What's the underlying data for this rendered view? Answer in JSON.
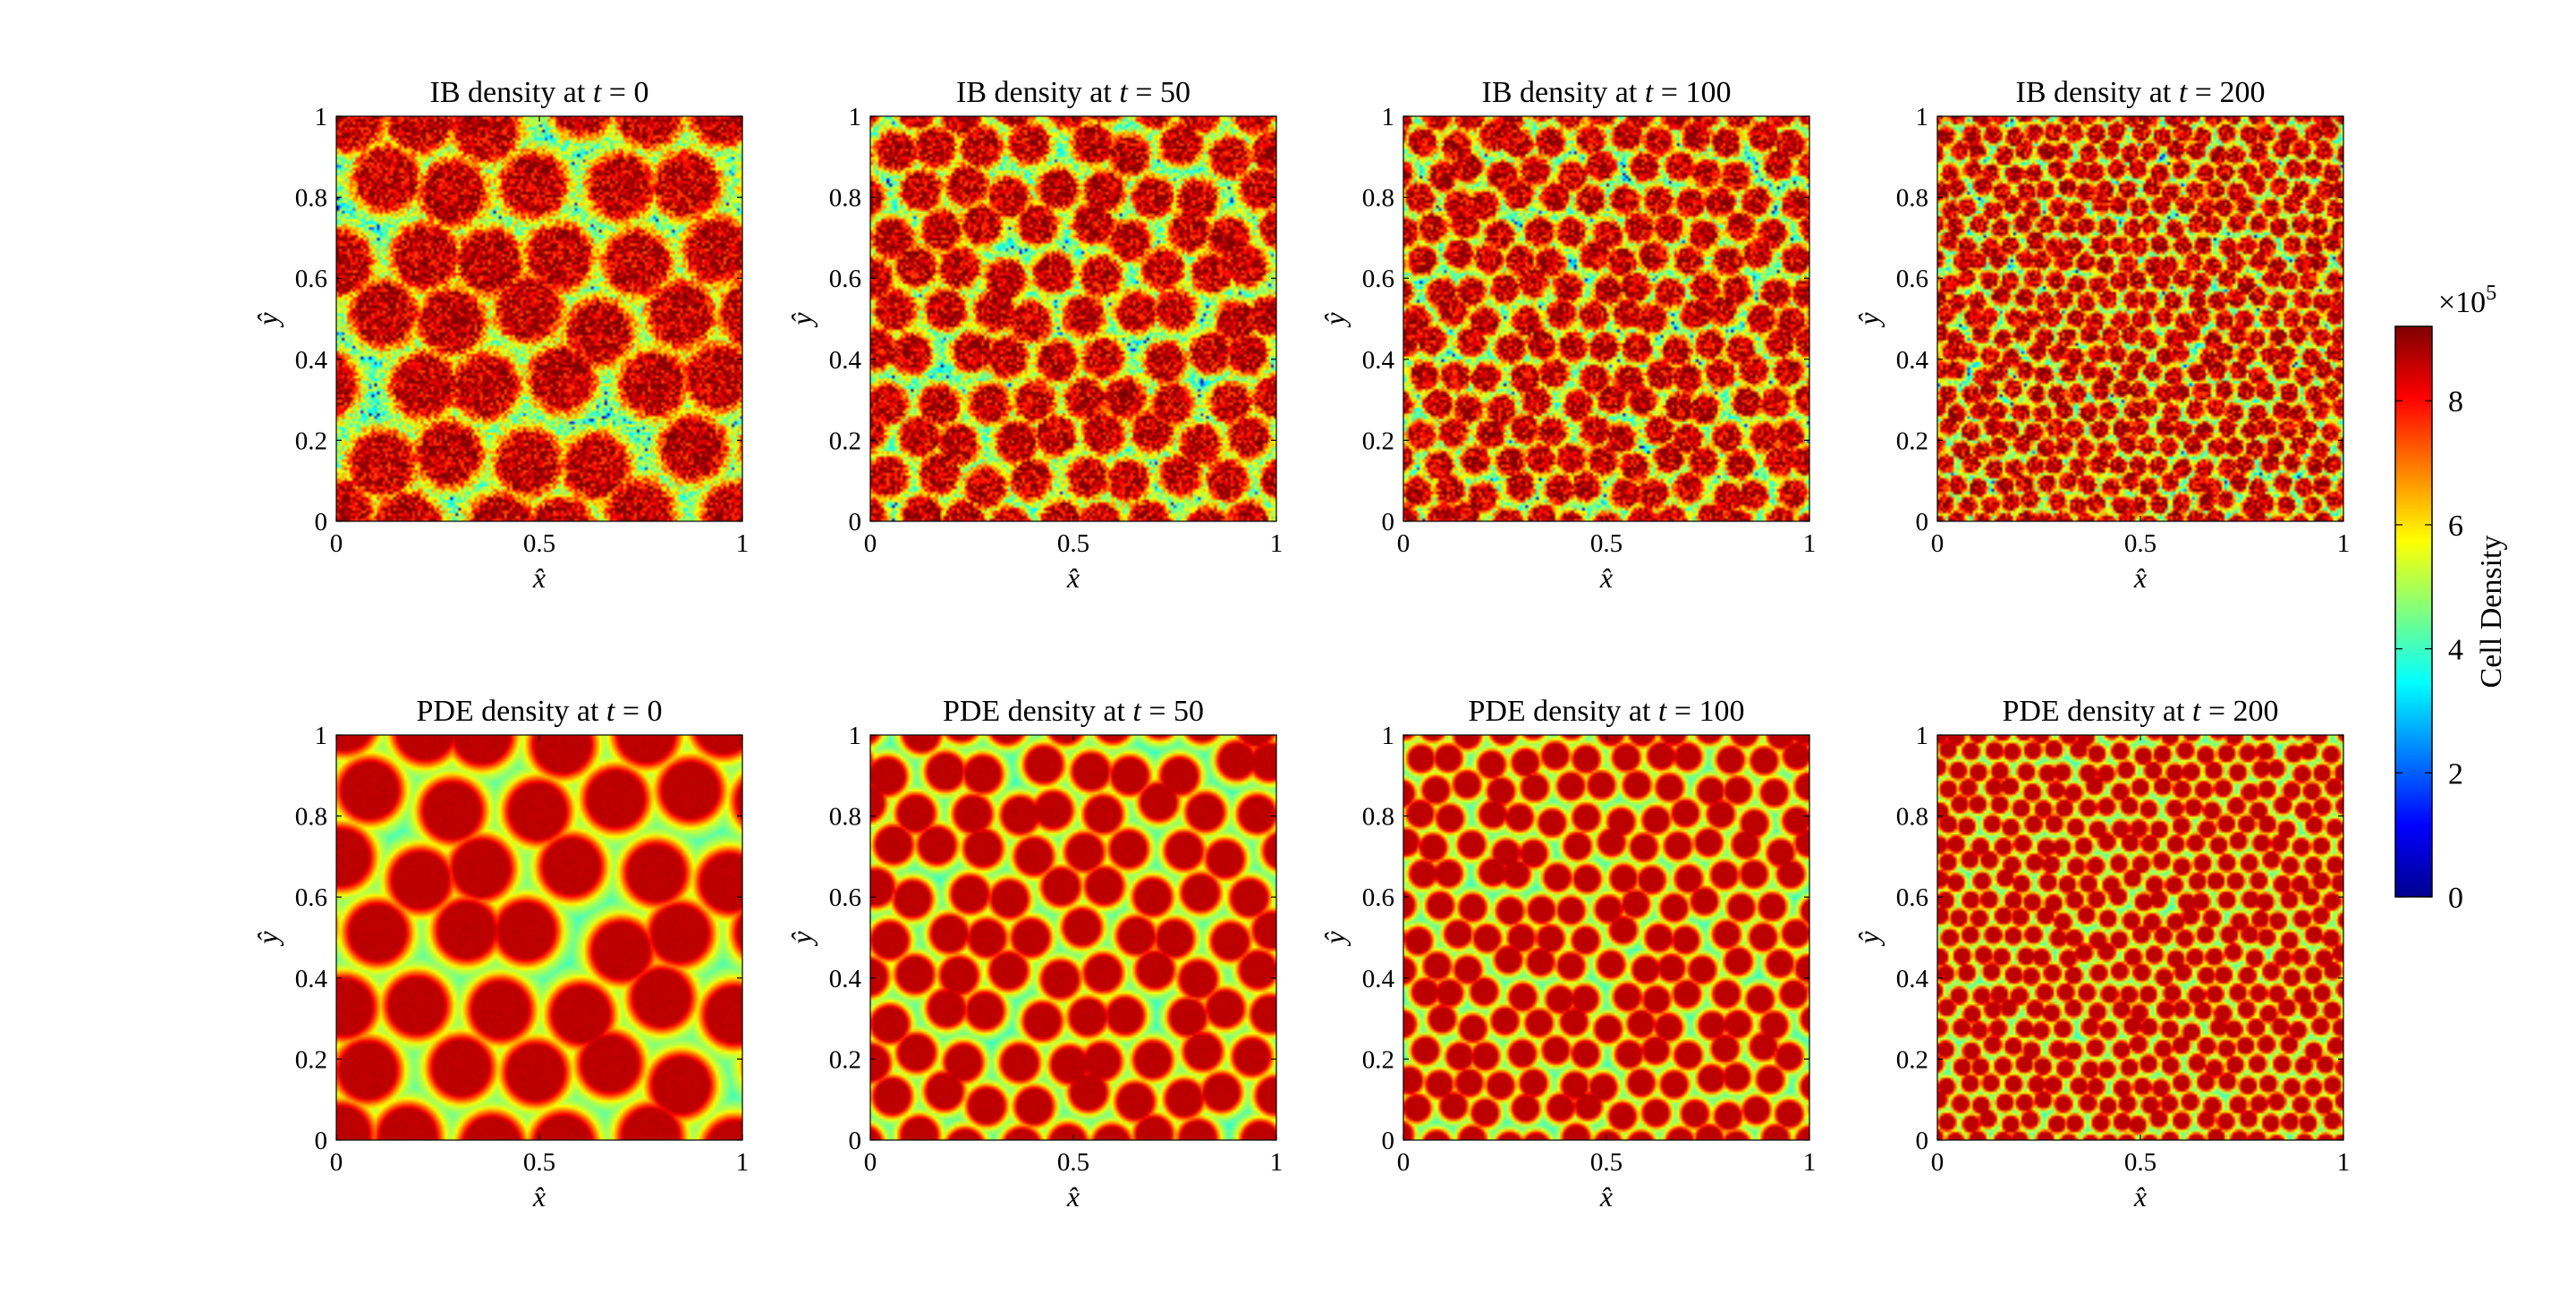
{
  "figure": {
    "colormap": "jet",
    "colorbar": {
      "label": "Cell Density",
      "exponent_label": "×10",
      "exponent": "5",
      "ticks": [
        0,
        2,
        4,
        6,
        8
      ],
      "clim": [
        0,
        9.2
      ]
    }
  },
  "chart_data": [
    {
      "type": "heatmap",
      "title": "IB density at ",
      "time_var": "t",
      "time_value": "= 0",
      "xlabel": "x̂",
      "ylabel": "ŷ",
      "xlim": [
        0,
        1
      ],
      "ylim": [
        0,
        1
      ],
      "xticks": [
        "0",
        "0.5",
        "1"
      ],
      "yticks": [
        "0",
        "0.2",
        "0.4",
        "0.6",
        "0.8",
        "1"
      ],
      "source": "IB",
      "t": 0,
      "spots_per_side": 5.2,
      "noisy": true
    },
    {
      "type": "heatmap",
      "title": "IB density at ",
      "time_var": "t",
      "time_value": "= 50",
      "xlabel": "x̂",
      "ylabel": "ŷ",
      "xlim": [
        0,
        1
      ],
      "ylim": [
        0,
        1
      ],
      "xticks": [
        "0",
        "0.5",
        "1"
      ],
      "yticks": [
        "0",
        "0.2",
        "0.4",
        "0.6",
        "0.8",
        "1"
      ],
      "source": "IB",
      "t": 50,
      "spots_per_side": 8.5,
      "noisy": true
    },
    {
      "type": "heatmap",
      "title": "IB density at ",
      "time_var": "t",
      "time_value": "= 100",
      "xlabel": "x̂",
      "ylabel": "ŷ",
      "xlim": [
        0,
        1
      ],
      "ylim": [
        0,
        1
      ],
      "xticks": [
        "0",
        "0.5",
        "1"
      ],
      "yticks": [
        "0",
        "0.2",
        "0.4",
        "0.6",
        "0.8",
        "1"
      ],
      "source": "IB",
      "t": 100,
      "spots_per_side": 12,
      "noisy": true
    },
    {
      "type": "heatmap",
      "title": "IB density at ",
      "time_var": "t",
      "time_value": "= 200",
      "xlabel": "x̂",
      "ylabel": "ŷ",
      "xlim": [
        0,
        1
      ],
      "ylim": [
        0,
        1
      ],
      "xticks": [
        "0",
        "0.5",
        "1"
      ],
      "yticks": [
        "0",
        "0.2",
        "0.4",
        "0.6",
        "0.8",
        "1"
      ],
      "source": "IB",
      "t": 200,
      "spots_per_side": 19,
      "noisy": true
    },
    {
      "type": "heatmap",
      "title": "PDE density at ",
      "time_var": "t",
      "time_value": "= 0",
      "xlabel": "x̂",
      "ylabel": "ŷ",
      "xlim": [
        0,
        1
      ],
      "ylim": [
        0,
        1
      ],
      "xticks": [
        "0",
        "0.5",
        "1"
      ],
      "yticks": [
        "0",
        "0.2",
        "0.4",
        "0.6",
        "0.8",
        "1"
      ],
      "source": "PDE",
      "t": 0,
      "spots_per_side": 5.2,
      "noisy": false
    },
    {
      "type": "heatmap",
      "title": "PDE density at ",
      "time_var": "t",
      "time_value": "= 50",
      "xlabel": "x̂",
      "ylabel": "ŷ",
      "xlim": [
        0,
        1
      ],
      "ylim": [
        0,
        1
      ],
      "xticks": [
        "0",
        "0.5",
        "1"
      ],
      "yticks": [
        "0",
        "0.2",
        "0.4",
        "0.6",
        "0.8",
        "1"
      ],
      "source": "PDE",
      "t": 50,
      "spots_per_side": 8.5,
      "noisy": false
    },
    {
      "type": "heatmap",
      "title": "PDE density at ",
      "time_var": "t",
      "time_value": "= 100",
      "xlabel": "x̂",
      "ylabel": "ŷ",
      "xlim": [
        0,
        1
      ],
      "ylim": [
        0,
        1
      ],
      "xticks": [
        "0",
        "0.5",
        "1"
      ],
      "yticks": [
        "0",
        "0.2",
        "0.4",
        "0.6",
        "0.8",
        "1"
      ],
      "source": "PDE",
      "t": 100,
      "spots_per_side": 12,
      "noisy": false
    },
    {
      "type": "heatmap",
      "title": "PDE density at ",
      "time_var": "t",
      "time_value": "= 200",
      "xlabel": "x̂",
      "ylabel": "ŷ",
      "xlim": [
        0,
        1
      ],
      "ylim": [
        0,
        1
      ],
      "xticks": [
        "0",
        "0.5",
        "1"
      ],
      "yticks": [
        "0",
        "0.2",
        "0.4",
        "0.6",
        "0.8",
        "1"
      ],
      "source": "PDE",
      "t": 200,
      "spots_per_side": 19,
      "noisy": false
    }
  ]
}
